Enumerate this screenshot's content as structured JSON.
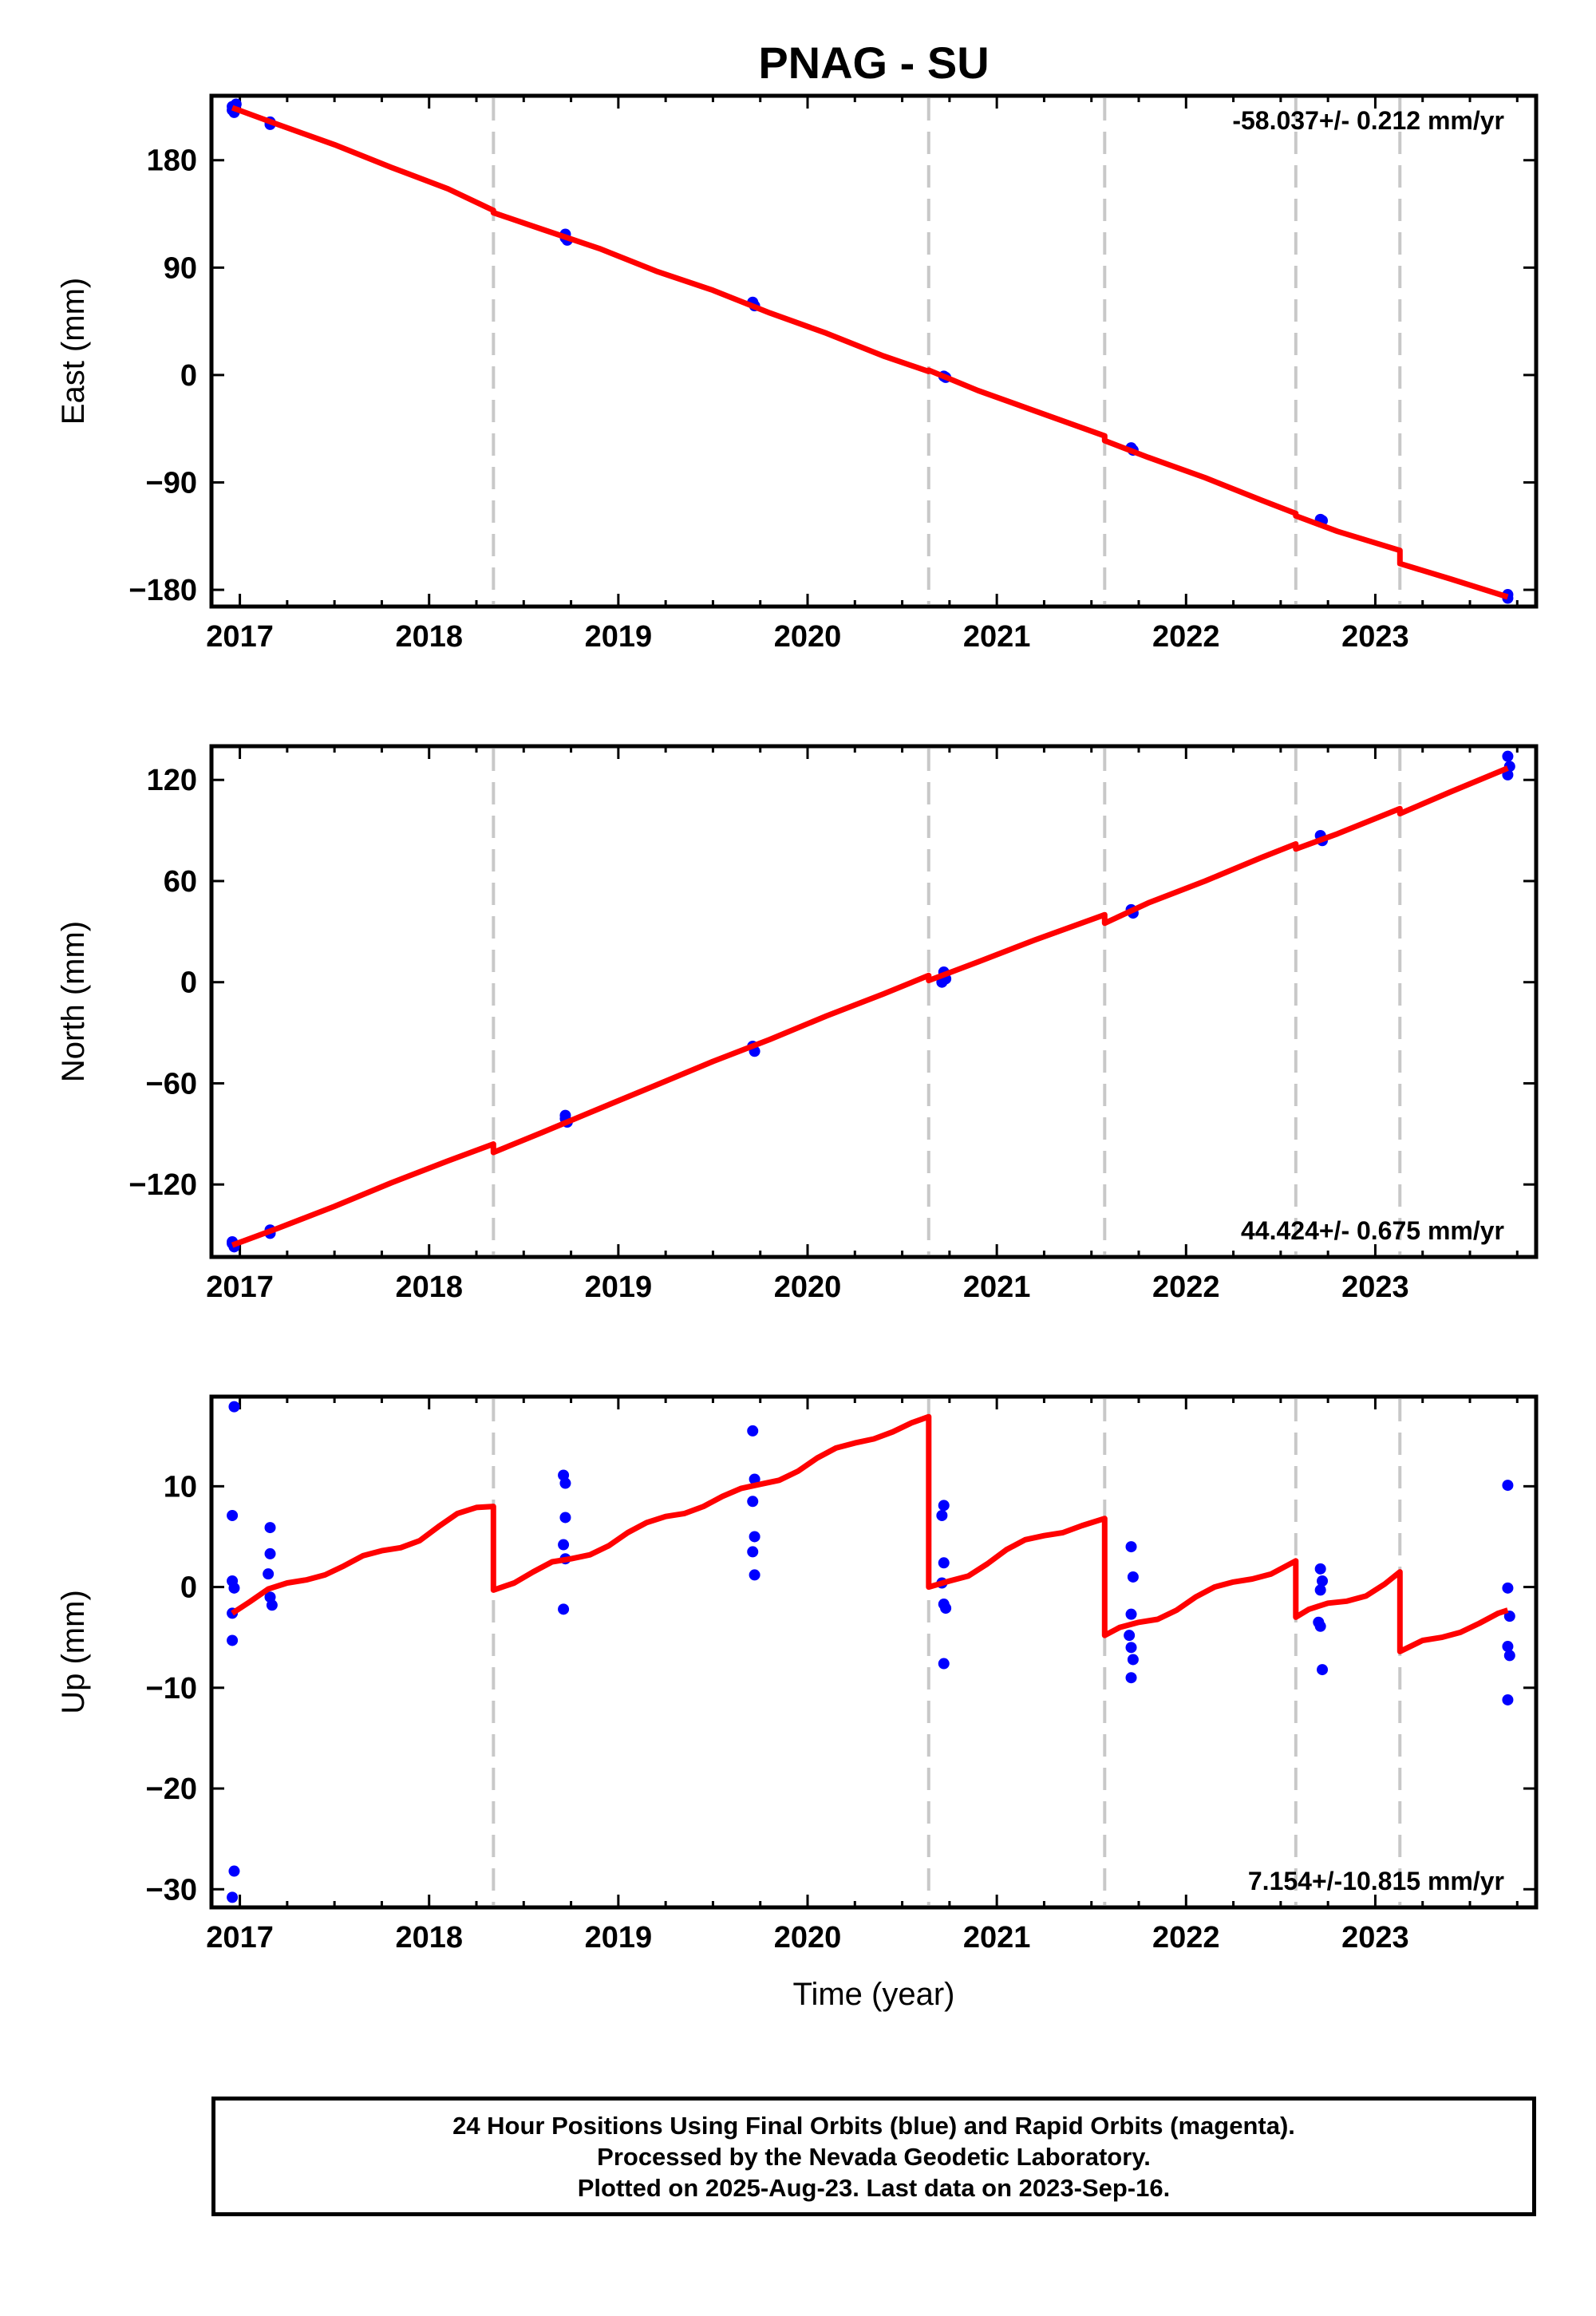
{
  "figure": {
    "title": "PNAG - SU",
    "xlabel": "Time (year)",
    "footer": [
      "24 Hour Positions Using Final Orbits (blue) and Rapid Orbits (magenta).",
      "Processed by the Nevada Geodetic Laboratory.",
      "Plotted on 2025-Aug-23. Last data on 2023-Sep-16."
    ],
    "colors": {
      "final_orbit_points": "#0000ff",
      "model": "#ff0000",
      "break_lines": "#c8c8c8"
    }
  },
  "chart_data": [
    {
      "type": "scatter",
      "component": "east",
      "ylabel": "East (mm)",
      "rate_text": "-58.037+/- 0.212 mm/yr",
      "xlim": [
        2016.85,
        2023.85
      ],
      "ylim": [
        -194,
        234
      ],
      "xticks": [
        2017,
        2018,
        2019,
        2020,
        2021,
        2022,
        2023
      ],
      "yticks": [
        180,
        90,
        0,
        -90,
        -180
      ],
      "ytick_labels": [
        "180",
        "90",
        "0",
        "−90",
        "−180"
      ],
      "breaks": [
        2018.34,
        2020.64,
        2021.57,
        2022.58,
        2023.13
      ],
      "points": {
        "x": [
          2016.96,
          2016.96,
          2016.97,
          2016.98,
          2017.16,
          2017.16,
          2018.72,
          2018.73,
          2018.72,
          2019.71,
          2019.72,
          2020.72,
          2020.73,
          2021.71,
          2021.72,
          2022.71,
          2022.72,
          2023.7,
          2023.7
        ],
        "y": [
          225,
          222,
          220,
          227,
          212,
          210,
          118,
          113,
          115,
          61,
          58,
          -1,
          -2,
          -61,
          -63,
          -121,
          -122,
          -184,
          -187
        ]
      },
      "model": {
        "x": [
          2016.96,
          2017.2,
          2017.5,
          2017.8,
          2018.1,
          2018.34,
          2018.34,
          2018.6,
          2018.9,
          2019.2,
          2019.5,
          2019.8,
          2020.1,
          2020.4,
          2020.64,
          2020.64,
          2020.9,
          2021.2,
          2021.57,
          2021.57,
          2021.8,
          2022.1,
          2022.4,
          2022.58,
          2022.58,
          2022.8,
          2023.13,
          2023.13,
          2023.4,
          2023.7
        ],
        "y": [
          224,
          210,
          193,
          174,
          156,
          138,
          136,
          122,
          106,
          87,
          71,
          52,
          35,
          16,
          3,
          4,
          -13,
          -30,
          -51,
          -55,
          -69,
          -86,
          -105,
          -116,
          -118,
          -131,
          -147,
          -158,
          -171,
          -186
        ]
      }
    },
    {
      "type": "scatter",
      "component": "north",
      "ylabel": "North (mm)",
      "rate_text": "44.424+/- 0.675 mm/yr",
      "xlim": [
        2016.85,
        2023.85
      ],
      "ylim": [
        -163,
        140
      ],
      "xticks": [
        2017,
        2018,
        2019,
        2020,
        2021,
        2022,
        2023
      ],
      "yticks": [
        120,
        60,
        0,
        -60,
        -120
      ],
      "ytick_labels": [
        "120",
        "60",
        "0",
        "−60",
        "−120"
      ],
      "breaks": [
        2018.34,
        2020.64,
        2021.57,
        2022.58,
        2023.13
      ],
      "points": {
        "x": [
          2016.96,
          2016.97,
          2016.96,
          2017.16,
          2017.16,
          2018.72,
          2018.73,
          2018.72,
          2019.71,
          2019.72,
          2020.72,
          2020.73,
          2020.71,
          2021.71,
          2021.72,
          2022.71,
          2022.72,
          2023.7,
          2023.7,
          2023.71
        ],
        "y": [
          -155,
          -157,
          -154,
          -147,
          -149,
          -79,
          -83,
          -81,
          -38,
          -41,
          6,
          2,
          0,
          43,
          41,
          87,
          84,
          134,
          123,
          128
        ]
      },
      "model": {
        "x": [
          2016.96,
          2017.2,
          2017.5,
          2017.8,
          2018.1,
          2018.34,
          2018.34,
          2018.6,
          2018.9,
          2019.2,
          2019.5,
          2019.8,
          2020.1,
          2020.4,
          2020.64,
          2020.64,
          2020.9,
          2021.2,
          2021.57,
          2021.57,
          2021.8,
          2022.1,
          2022.4,
          2022.58,
          2022.58,
          2022.8,
          2023.13,
          2023.13,
          2023.4,
          2023.7
        ],
        "y": [
          -156,
          -146,
          -133,
          -119,
          -106,
          -96,
          -101,
          -89,
          -75,
          -61,
          -47,
          -34,
          -20,
          -7,
          4,
          1,
          12,
          25,
          40,
          35,
          47,
          60,
          74,
          82,
          79,
          88,
          103,
          100,
          113,
          127
        ]
      }
    },
    {
      "type": "scatter",
      "component": "up",
      "ylabel": "Up (mm)",
      "rate_text": "7.154+/-10.815 mm/yr",
      "xlim": [
        2016.85,
        2023.85
      ],
      "ylim": [
        -31.8,
        18.9
      ],
      "xticks": [
        2017,
        2018,
        2019,
        2020,
        2021,
        2022,
        2023
      ],
      "yticks": [
        10,
        0,
        -10,
        -20,
        -30
      ],
      "ytick_labels": [
        "10",
        "0",
        "−10",
        "−20",
        "−30"
      ],
      "breaks": [
        2018.34,
        2020.64,
        2021.57,
        2022.58,
        2023.13
      ],
      "points": {
        "x": [
          2016.97,
          2016.96,
          2016.96,
          2016.97,
          2016.96,
          2016.96,
          2016.97,
          2016.96,
          2017.16,
          2017.16,
          2017.15,
          2017.16,
          2017.17,
          2018.71,
          2018.72,
          2018.72,
          2018.71,
          2018.72,
          2018.71,
          2019.71,
          2019.72,
          2019.71,
          2019.72,
          2019.71,
          2019.72,
          2020.72,
          2020.71,
          2020.72,
          2020.71,
          2020.72,
          2020.73,
          2020.72,
          2021.71,
          2021.72,
          2021.71,
          2021.7,
          2021.71,
          2021.72,
          2021.71,
          2022.71,
          2022.72,
          2022.71,
          2022.7,
          2022.71,
          2022.72,
          2023.7,
          2023.7,
          2023.71,
          2023.7,
          2023.71,
          2023.7
        ],
        "y": [
          17.9,
          7.1,
          0.6,
          -0.1,
          -2.6,
          -5.3,
          -28.2,
          -30.8,
          5.9,
          3.3,
          1.3,
          -1.0,
          -1.8,
          11.1,
          10.3,
          6.9,
          4.2,
          2.8,
          -2.2,
          15.5,
          10.7,
          8.5,
          5.0,
          3.5,
          1.2,
          8.1,
          7.1,
          2.4,
          0.4,
          -1.7,
          -2.1,
          -7.6,
          4.0,
          1.0,
          -2.7,
          -4.8,
          -6.0,
          -7.2,
          -9.0,
          1.8,
          0.6,
          -0.3,
          -3.5,
          -3.9,
          -8.2,
          10.1,
          -0.1,
          -2.9,
          -5.9,
          -6.8,
          -11.2
        ]
      },
      "model": {
        "x": [
          2016.96,
          2017.05,
          2017.15,
          2017.25,
          2017.35,
          2017.45,
          2017.55,
          2017.65,
          2017.75,
          2017.85,
          2017.95,
          2018.05,
          2018.15,
          2018.25,
          2018.34,
          2018.34,
          2018.45,
          2018.55,
          2018.65,
          2018.75,
          2018.85,
          2018.95,
          2019.05,
          2019.15,
          2019.25,
          2019.35,
          2019.45,
          2019.55,
          2019.65,
          2019.75,
          2019.85,
          2019.95,
          2020.05,
          2020.15,
          2020.25,
          2020.35,
          2020.45,
          2020.55,
          2020.64,
          2020.64,
          2020.75,
          2020.85,
          2020.95,
          2021.05,
          2021.15,
          2021.25,
          2021.35,
          2021.45,
          2021.57,
          2021.57,
          2021.65,
          2021.75,
          2021.85,
          2021.95,
          2022.05,
          2022.15,
          2022.25,
          2022.35,
          2022.45,
          2022.58,
          2022.58,
          2022.65,
          2022.75,
          2022.85,
          2022.95,
          2023.05,
          2023.13,
          2023.13,
          2023.25,
          2023.35,
          2023.45,
          2023.55,
          2023.65,
          2023.7
        ],
        "y": [
          -2.6,
          -1.5,
          -0.2,
          0.4,
          0.7,
          1.2,
          2.1,
          3.1,
          3.6,
          3.9,
          4.6,
          6.0,
          7.3,
          7.9,
          8.0,
          -0.3,
          0.4,
          1.5,
          2.5,
          2.8,
          3.2,
          4.1,
          5.4,
          6.4,
          7.0,
          7.3,
          8.0,
          9.0,
          9.8,
          10.2,
          10.6,
          11.5,
          12.8,
          13.8,
          14.3,
          14.7,
          15.4,
          16.3,
          16.9,
          0.0,
          0.6,
          1.1,
          2.3,
          3.7,
          4.7,
          5.1,
          5.4,
          6.1,
          6.8,
          -4.8,
          -4.0,
          -3.5,
          -3.2,
          -2.3,
          -1.0,
          0.0,
          0.5,
          0.8,
          1.3,
          2.6,
          -3.0,
          -2.2,
          -1.6,
          -1.4,
          -0.9,
          0.3,
          1.5,
          -6.4,
          -5.3,
          -5.0,
          -4.5,
          -3.6,
          -2.6,
          -2.3
        ]
      }
    }
  ]
}
